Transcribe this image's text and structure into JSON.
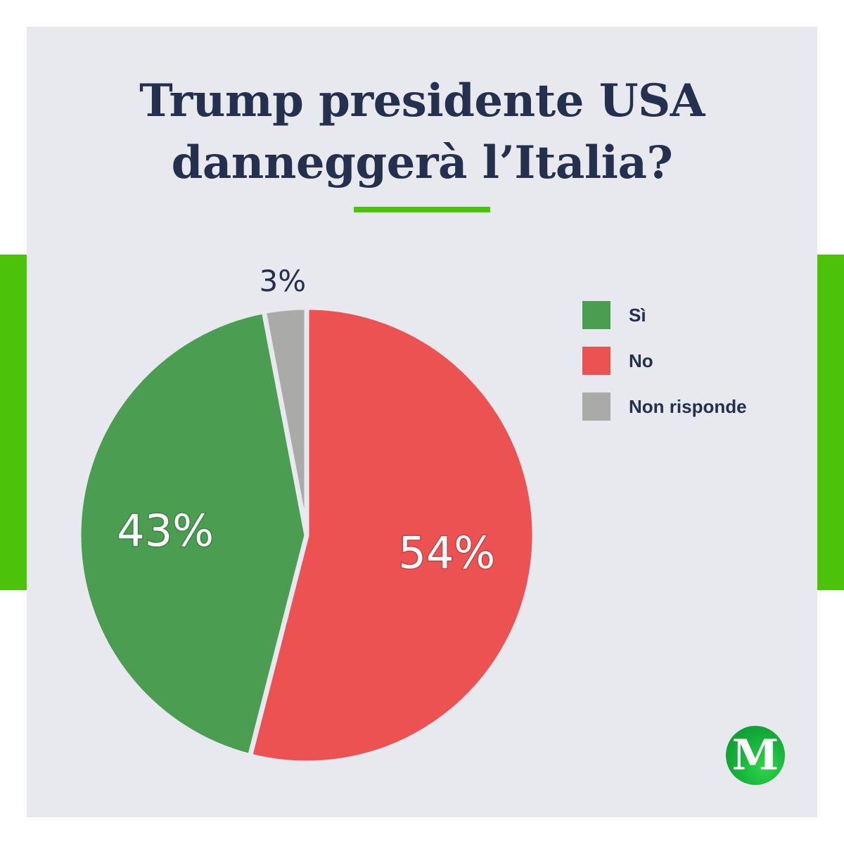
{
  "title_lines": [
    "Trump presidente USA",
    "danneggerà l’Italia?"
  ],
  "logo_text": "M",
  "colors": {
    "accent": "#4cc20a",
    "background": "#e8e9ee",
    "text": "#24304d"
  },
  "chart_data": {
    "type": "pie",
    "title": "Trump presidente USA danneggerà l’Italia?",
    "legend_position": "top-right",
    "slices": [
      {
        "label": "No",
        "value": 54,
        "display": "54%",
        "color": "#ec5252"
      },
      {
        "label": "Sì",
        "value": 43,
        "display": "43%",
        "color": "#4a9d51"
      },
      {
        "label": "Non risponde",
        "value": 3,
        "display": "3%",
        "color": "#aaaaa8"
      }
    ],
    "legend": [
      {
        "label": "Sì",
        "color": "#4a9d51"
      },
      {
        "label": "No",
        "color": "#ec5252"
      },
      {
        "label": "Non risponde",
        "color": "#aaaaa8"
      }
    ]
  }
}
